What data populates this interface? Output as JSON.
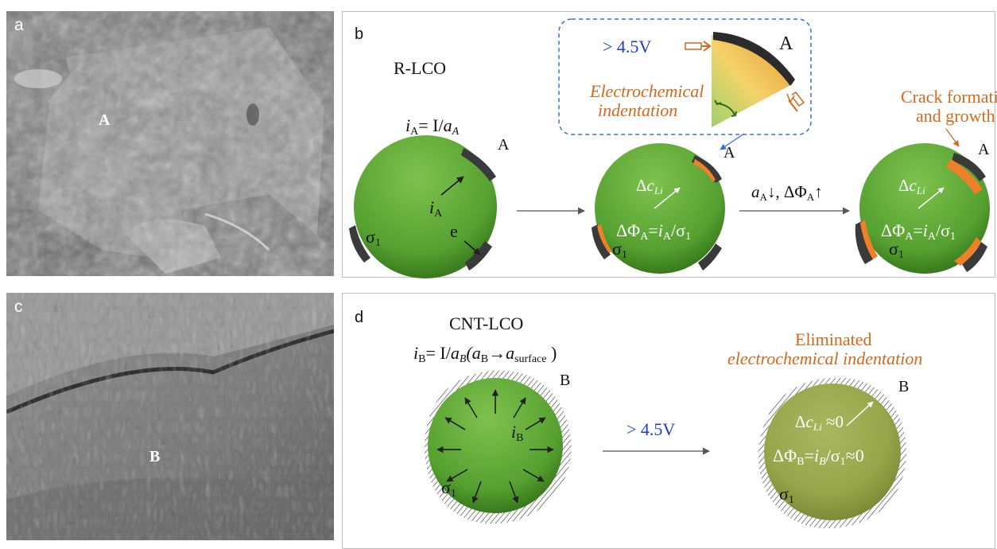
{
  "panel_a": {
    "label": "a",
    "region_label": "A"
  },
  "panel_c": {
    "label": "c",
    "region_label": "B"
  },
  "panel_b": {
    "label": "b",
    "sample": "R-LCO",
    "current_eq": {
      "i": "i",
      "sub": "A",
      "rest": "= I/",
      "a": "a",
      "asub": "A"
    },
    "particle_letter": "A",
    "sigma": "σ",
    "sigma_sub": "1",
    "current_arrow": {
      "i": "i",
      "sub": "A"
    },
    "electron_label": "e",
    "inset": {
      "voltage": "> 4.5V",
      "line1": "Electrochemical",
      "line2": "indentation",
      "letter": "A"
    },
    "delta_c": {
      "pre": "Δ",
      "c": "c",
      "sub": "Li"
    },
    "delta_phi": {
      "text": "ΔΦ",
      "sub": "A",
      "eq": "=",
      "i": "i",
      "isub": "A",
      "div": "/σ",
      "dsub": "1"
    },
    "transition": {
      "a": "a",
      "asub": "A",
      "arrow1": "↓, ΔΦ",
      "phisub": "A",
      "arrow2": "↑"
    },
    "crack_line1": "Crack formation",
    "crack_line2": "and growth"
  },
  "panel_d": {
    "label": "d",
    "sample": "CNT-LCO",
    "current_eq": {
      "i": "i",
      "sub": "B",
      "rest": "= I/",
      "a": "a",
      "asub": "B",
      "paren_a": "(a",
      "paren_asub": "B",
      "arrow": "→a",
      "surf": "surface",
      "close": " )"
    },
    "particle_letter": "B",
    "current_arrow": {
      "i": "i",
      "sub": "B"
    },
    "sigma": "σ",
    "sigma_sub": "1",
    "voltage": "> 4.5V",
    "elim_line1": "Eliminated",
    "elim_line2": "electrochemical indentation",
    "delta_c": {
      "pre": "Δ",
      "c": "c",
      "sub": "Li",
      "rest": " ≈0"
    },
    "delta_phi": {
      "text": "ΔΦ",
      "sub": "B",
      "eq": "=",
      "i": "i",
      "isub": "B",
      "div": "/σ",
      "dsub": "1",
      "rest": "≈0"
    }
  },
  "colors": {
    "particle_green": "#5aa032",
    "particle_dark": "#3c7a1e",
    "orange_text": "#d2691e",
    "blue_text": "#1f3fbf",
    "degraded_orange": "#f07f2a",
    "dark_coating": "#3a3a3a"
  }
}
